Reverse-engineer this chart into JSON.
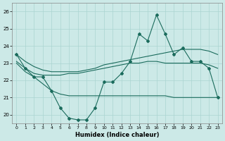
{
  "x": [
    0,
    1,
    2,
    3,
    4,
    5,
    6,
    7,
    8,
    9,
    10,
    11,
    12,
    13,
    14,
    15,
    16,
    17,
    18,
    19,
    20,
    21,
    22,
    23
  ],
  "main_line": [
    23.5,
    22.7,
    22.2,
    22.2,
    21.4,
    20.4,
    19.8,
    19.7,
    19.7,
    20.4,
    21.9,
    21.9,
    22.4,
    23.1,
    24.7,
    24.3,
    25.8,
    24.7,
    23.5,
    23.9,
    23.1,
    23.1,
    22.7,
    21.0
  ],
  "trend_high": [
    23.5,
    23.1,
    22.8,
    22.6,
    22.5,
    22.5,
    22.5,
    22.5,
    22.6,
    22.7,
    22.9,
    23.0,
    23.1,
    23.2,
    23.3,
    23.4,
    23.5,
    23.6,
    23.7,
    23.8,
    23.8,
    23.8,
    23.7,
    23.5
  ],
  "trend_mid": [
    23.1,
    22.7,
    22.4,
    22.3,
    22.3,
    22.3,
    22.4,
    22.4,
    22.5,
    22.6,
    22.7,
    22.8,
    22.9,
    23.0,
    23.0,
    23.1,
    23.1,
    23.0,
    23.0,
    23.0,
    23.0,
    23.0,
    22.9,
    22.7
  ],
  "trend_low": [
    23.0,
    22.5,
    22.2,
    21.8,
    21.4,
    21.2,
    21.1,
    21.1,
    21.1,
    21.1,
    21.1,
    21.1,
    21.1,
    21.1,
    21.1,
    21.1,
    21.1,
    21.1,
    21.0,
    21.0,
    21.0,
    21.0,
    21.0,
    21.0
  ],
  "background_color": "#cce9e7",
  "grid_color": "#aad4d1",
  "line_color": "#1a6b5c",
  "ylim": [
    19.5,
    26.5
  ],
  "xlim": [
    -0.5,
    23.5
  ],
  "yticks": [
    20,
    21,
    22,
    23,
    24,
    25,
    26
  ],
  "xticks": [
    0,
    1,
    2,
    3,
    4,
    5,
    6,
    7,
    8,
    9,
    10,
    11,
    12,
    13,
    14,
    15,
    16,
    17,
    18,
    19,
    20,
    21,
    22,
    23
  ],
  "xlabel": "Humidex (Indice chaleur)"
}
